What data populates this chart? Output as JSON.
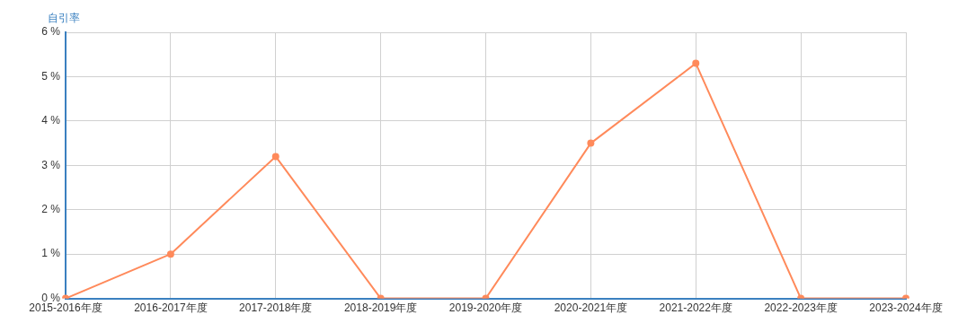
{
  "chart_data": {
    "type": "line",
    "ylabel": "自引率",
    "categories": [
      "2015-2016年度",
      "2016-2017年度",
      "2017-2018年度",
      "2018-2019年度",
      "2019-2020年度",
      "2020-2021年度",
      "2021-2022年度",
      "2022-2023年度",
      "2023-2024年度"
    ],
    "series": [
      {
        "color": "#ff8a5b",
        "values": [
          0,
          1,
          3.2,
          0,
          0,
          3.5,
          5.3,
          0,
          0
        ]
      }
    ],
    "ylim": [
      0,
      6
    ],
    "yticks": [
      {
        "value": 0,
        "label": "0 %"
      },
      {
        "value": 1,
        "label": "1 %"
      },
      {
        "value": 2,
        "label": "2 %"
      },
      {
        "value": 3,
        "label": "3 %"
      },
      {
        "value": 4,
        "label": "4 %"
      },
      {
        "value": 5,
        "label": "5 %"
      },
      {
        "value": 6,
        "label": "6 %"
      }
    ],
    "grid": true,
    "legend": false,
    "marker": "circle",
    "line_style": "solid"
  }
}
